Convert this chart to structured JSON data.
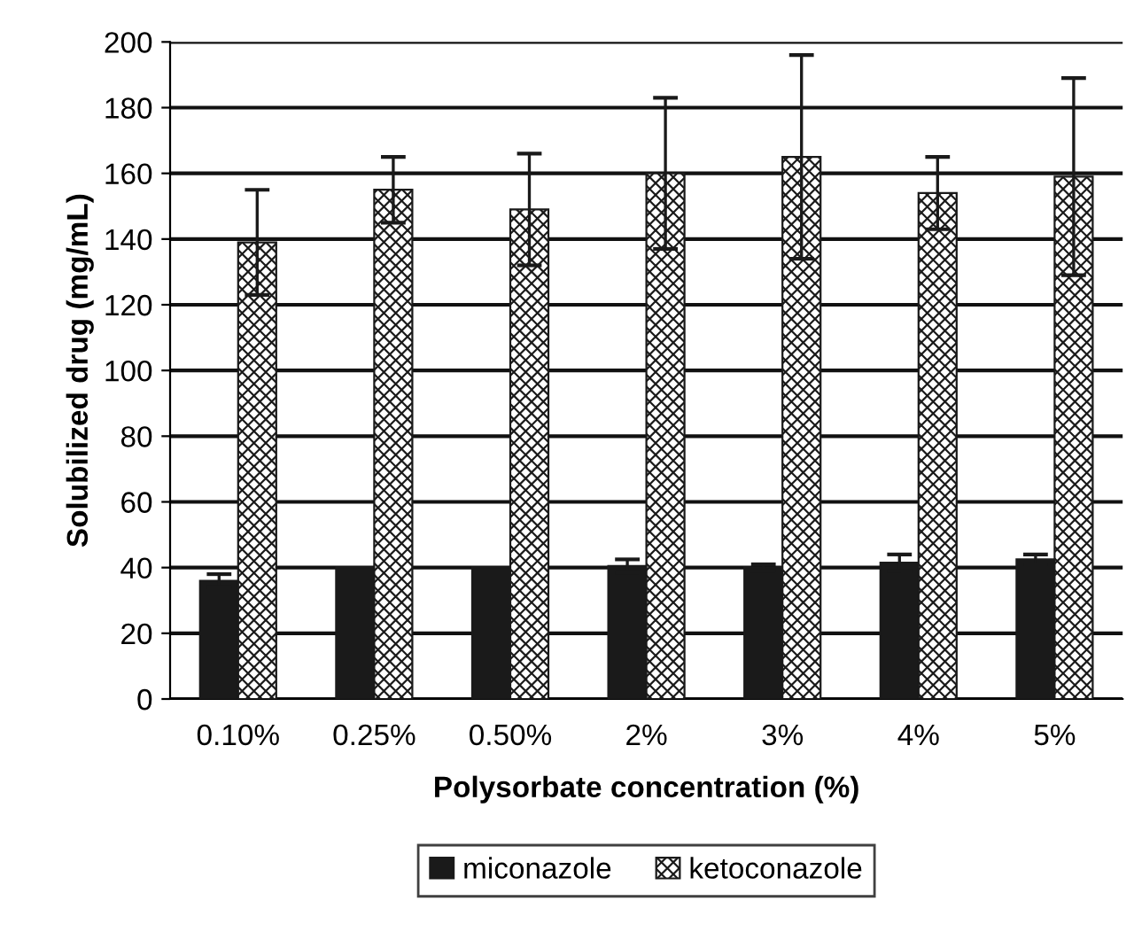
{
  "chart_data": {
    "type": "bar",
    "xlabel": "Polysorbate concentration (%)",
    "ylabel": "Solubilized drug (mg/mL)",
    "categories": [
      "0.10%",
      "0.25%",
      "0.50%",
      "2%",
      "3%",
      "4%",
      "5%"
    ],
    "series": [
      {
        "name": "miconazole",
        "color": "#1a1a1a",
        "values": [
          36,
          40,
          40,
          40.5,
          40,
          41.5,
          42.5
        ],
        "errors": [
          2,
          null,
          null,
          2,
          1,
          2.5,
          1.5
        ]
      },
      {
        "name": "ketoconazole",
        "color": "#1a1a1a",
        "values": [
          139,
          155,
          149,
          160,
          165,
          154,
          159
        ],
        "errors": [
          16,
          10,
          17,
          23,
          31,
          11,
          30
        ]
      }
    ],
    "ylim": [
      0,
      200
    ],
    "yticks": [
      0,
      20,
      40,
      60,
      80,
      100,
      120,
      140,
      160,
      180,
      200
    ],
    "grid": "y",
    "legend": "bottom"
  }
}
